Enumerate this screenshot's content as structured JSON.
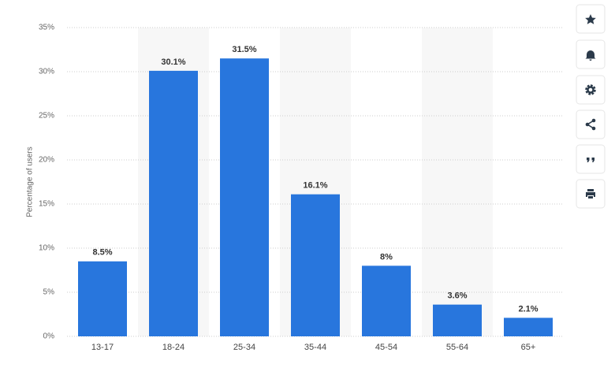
{
  "chart_data": {
    "type": "bar",
    "y_label": "Percentage of users",
    "categories": [
      "13-17",
      "18-24",
      "25-34",
      "35-44",
      "45-54",
      "55-64",
      "65+"
    ],
    "values": [
      8.5,
      30.1,
      31.5,
      16.1,
      8,
      3.6,
      2.1
    ],
    "value_labels": [
      "8.5%",
      "30.1%",
      "31.5%",
      "16.1%",
      "8%",
      "3.6%",
      "2.1%"
    ],
    "color": "#2876dd",
    "ylim": [
      0,
      35
    ],
    "yticks": [
      {
        "value": 0,
        "label": "0%"
      },
      {
        "value": 5,
        "label": "5%"
      },
      {
        "value": 10,
        "label": "10%"
      },
      {
        "value": 15,
        "label": "15%"
      },
      {
        "value": 20,
        "label": "20%"
      },
      {
        "value": 25,
        "label": "25%"
      },
      {
        "value": 30,
        "label": "30%"
      },
      {
        "value": 35,
        "label": "35%"
      }
    ],
    "grid": true
  }
}
